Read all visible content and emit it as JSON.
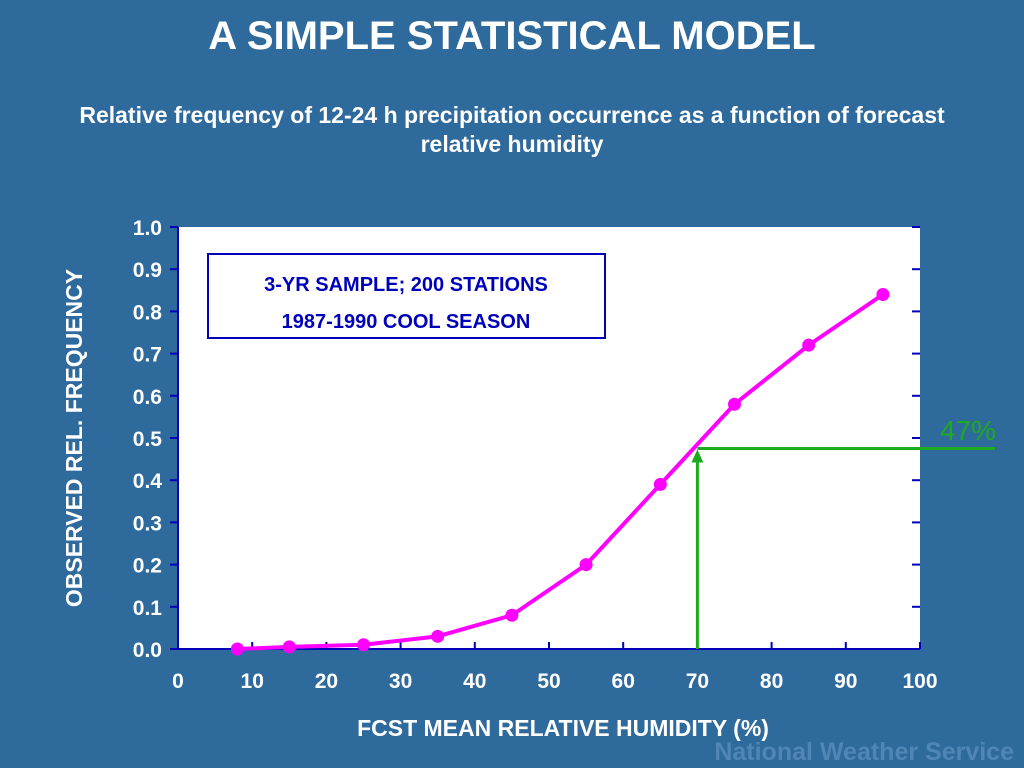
{
  "slide": {
    "title": "A SIMPLE STATISTICAL MODEL",
    "subtitle": "Relative frequency of 12-24 h precipitation occurrence as a function of forecast relative humidity",
    "watermark": "National Weather Service"
  },
  "colors": {
    "background": "#2f6a9d",
    "plot_area": "#ffffff",
    "series": "#ff00ff",
    "indicator": "#1eaa1e",
    "legend_text": "#0000bb",
    "axis_text": "#ffffff"
  },
  "chart_data": {
    "type": "line",
    "xlabel": "FCST MEAN RELATIVE HUMIDITY (%)",
    "ylabel": "OBSERVED REL. FREQUENCY",
    "xlim": [
      0,
      100
    ],
    "ylim": [
      0,
      1
    ],
    "x_ticks": [
      "0",
      "10",
      "20",
      "30",
      "40",
      "50",
      "60",
      "70",
      "80",
      "90",
      "100"
    ],
    "y_ticks": [
      "0.0",
      "0.1",
      "0.2",
      "0.3",
      "0.4",
      "0.5",
      "0.6",
      "0.7",
      "0.8",
      "0.9",
      "1.0"
    ],
    "grid": false,
    "series": [
      {
        "x": [
          8,
          15,
          25,
          35,
          45,
          55,
          65,
          75,
          85,
          95
        ],
        "y": [
          0.0,
          0.005,
          0.01,
          0.03,
          0.08,
          0.2,
          0.39,
          0.58,
          0.72,
          0.84
        ]
      }
    ],
    "annotation_box": {
      "line1": "3-YR SAMPLE;  200 STATIONS",
      "line2": "1987-1990 COOL SEASON",
      "placement": "top-left"
    },
    "indicator": {
      "x": 70,
      "y": 0.475,
      "label": "47%"
    }
  }
}
